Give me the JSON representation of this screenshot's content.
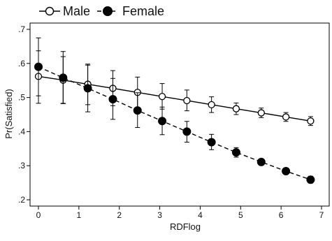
{
  "chart_data": {
    "type": "line",
    "title": "",
    "xlabel": "RDFlog",
    "ylabel": "Pr(Satisfied)",
    "xlim": [
      0,
      7
    ],
    "ylim": [
      0.2,
      0.7
    ],
    "x_ticks": [
      0,
      1,
      2,
      3,
      4,
      5,
      6,
      7
    ],
    "y_ticks": [
      0.2,
      0.3,
      0.4,
      0.5,
      0.6,
      0.7
    ],
    "x_tick_labels": [
      "0",
      "1",
      "2",
      "3",
      "4",
      "5",
      "6",
      "7"
    ],
    "y_tick_labels": [
      ".2",
      ".3",
      ".4",
      ".5",
      ".6",
      ".7"
    ],
    "grid": false,
    "legend_position": "top-left",
    "series": [
      {
        "name": "Male",
        "marker": "open-circle",
        "line_style": "solid",
        "color": "#000000",
        "points": [
          {
            "x": 0.0,
            "y": 0.562,
            "lo": 0.483,
            "hi": 0.637
          },
          {
            "x": 0.61,
            "y": 0.551,
            "lo": 0.482,
            "hi": 0.62
          },
          {
            "x": 1.22,
            "y": 0.539,
            "lo": 0.479,
            "hi": 0.598
          },
          {
            "x": 1.84,
            "y": 0.527,
            "lo": 0.476,
            "hi": 0.579
          },
          {
            "x": 2.45,
            "y": 0.515,
            "lo": 0.471,
            "hi": 0.56
          },
          {
            "x": 3.06,
            "y": 0.503,
            "lo": 0.466,
            "hi": 0.541
          },
          {
            "x": 3.67,
            "y": 0.491,
            "lo": 0.461,
            "hi": 0.522
          },
          {
            "x": 4.28,
            "y": 0.479,
            "lo": 0.456,
            "hi": 0.502
          },
          {
            "x": 4.89,
            "y": 0.467,
            "lo": 0.45,
            "hi": 0.484
          },
          {
            "x": 5.51,
            "y": 0.455,
            "lo": 0.441,
            "hi": 0.469
          },
          {
            "x": 6.12,
            "y": 0.443,
            "lo": 0.43,
            "hi": 0.456
          },
          {
            "x": 6.73,
            "y": 0.431,
            "lo": 0.418,
            "hi": 0.444
          }
        ]
      },
      {
        "name": "Female",
        "marker": "filled-circle",
        "line_style": "dashed",
        "color": "#000000",
        "points": [
          {
            "x": 0.0,
            "y": 0.59,
            "lo": 0.505,
            "hi": 0.675
          },
          {
            "x": 0.61,
            "y": 0.558,
            "lo": 0.483,
            "hi": 0.635
          },
          {
            "x": 1.22,
            "y": 0.527,
            "lo": 0.458,
            "hi": 0.595
          },
          {
            "x": 1.84,
            "y": 0.495,
            "lo": 0.436,
            "hi": 0.556
          },
          {
            "x": 2.45,
            "y": 0.462,
            "lo": 0.412,
            "hi": 0.514
          },
          {
            "x": 3.06,
            "y": 0.431,
            "lo": 0.391,
            "hi": 0.472
          },
          {
            "x": 3.67,
            "y": 0.4,
            "lo": 0.369,
            "hi": 0.43
          },
          {
            "x": 4.28,
            "y": 0.369,
            "lo": 0.347,
            "hi": 0.392
          },
          {
            "x": 4.89,
            "y": 0.339,
            "lo": 0.325,
            "hi": 0.353
          },
          {
            "x": 5.51,
            "y": 0.311,
            "lo": 0.302,
            "hi": 0.32
          },
          {
            "x": 6.12,
            "y": 0.284,
            "lo": 0.276,
            "hi": 0.292
          },
          {
            "x": 6.73,
            "y": 0.259,
            "lo": 0.249,
            "hi": 0.269
          }
        ]
      }
    ]
  }
}
